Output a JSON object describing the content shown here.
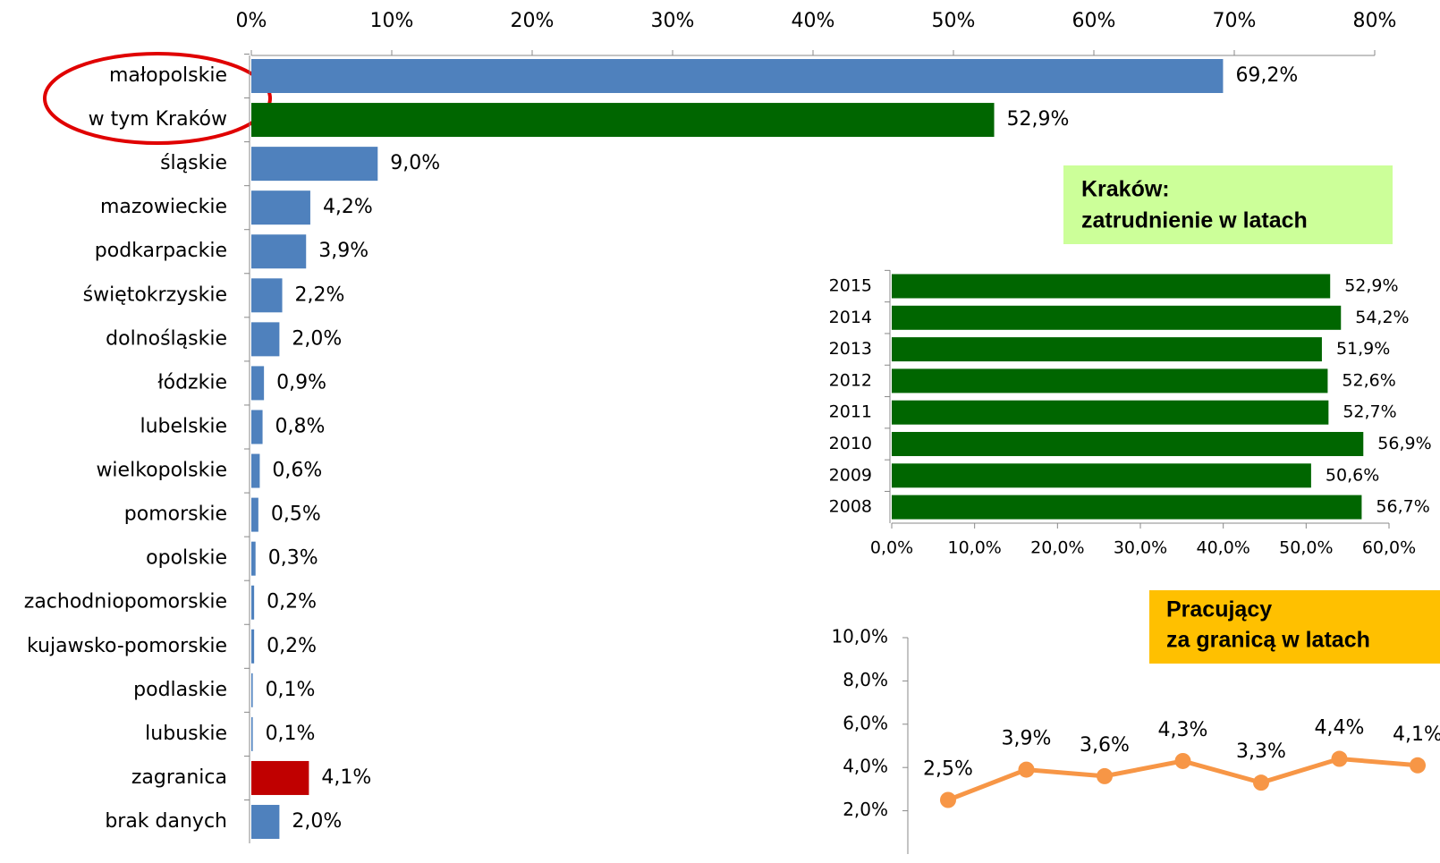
{
  "chart_data": [
    {
      "type": "bar",
      "categories": [
        "małopolskie",
        "w tym Kraków",
        "śląskie",
        "mazowieckie",
        "podkarpackie",
        "świętokrzyskie",
        "dolnośląskie",
        "łódzkie",
        "lubelskie",
        "wielkopolskie",
        "pomorskie",
        "opolskie",
        "zachodniopomorskie",
        "kujawsko-pomorskie",
        "podlaskie",
        "lubuskie",
        "zagranica",
        "brak danych"
      ],
      "values": [
        69.2,
        52.9,
        9.0,
        4.2,
        3.9,
        2.2,
        2.0,
        0.9,
        0.8,
        0.6,
        0.5,
        0.3,
        0.2,
        0.2,
        0.1,
        0.1,
        4.1,
        2.0
      ],
      "value_labels": [
        "69,2%",
        "52,9%",
        "9,0%",
        "4,2%",
        "3,9%",
        "2,2%",
        "2,0%",
        "0,9%",
        "0,8%",
        "0,6%",
        "0,5%",
        "0,3%",
        "0,2%",
        "0,2%",
        "0,1%",
        "0,1%",
        "4,1%",
        "2,0%"
      ],
      "colors": [
        "#4f81bd",
        "#006600",
        "#4f81bd",
        "#4f81bd",
        "#4f81bd",
        "#4f81bd",
        "#4f81bd",
        "#4f81bd",
        "#4f81bd",
        "#4f81bd",
        "#4f81bd",
        "#4f81bd",
        "#4f81bd",
        "#4f81bd",
        "#4f81bd",
        "#4f81bd",
        "#c00000",
        "#4f81bd"
      ],
      "xlim": [
        0,
        80
      ],
      "xticks": [
        {
          "value": 0,
          "label": "0%"
        },
        {
          "value": 10,
          "label": "10%"
        },
        {
          "value": 20,
          "label": "20%"
        },
        {
          "value": 30,
          "label": "30%"
        },
        {
          "value": 40,
          "label": "40%"
        },
        {
          "value": 50,
          "label": "50%"
        },
        {
          "value": 60,
          "label": "60%"
        },
        {
          "value": 70,
          "label": "70%"
        },
        {
          "value": 80,
          "label": "80%"
        }
      ]
    },
    {
      "type": "bar",
      "title": [
        "Kraków:",
        "zatrudnienie  w latach"
      ],
      "categories": [
        "2015",
        "2014",
        "2013",
        "2012",
        "2011",
        "2010",
        "2009",
        "2008"
      ],
      "values": [
        52.9,
        54.2,
        51.9,
        52.6,
        52.7,
        56.9,
        50.6,
        56.7
      ],
      "value_labels": [
        "52,9%",
        "54,2%",
        "51,9%",
        "52,6%",
        "52,7%",
        "56,9%",
        "50,6%",
        "56,7%"
      ],
      "color": "#006600",
      "xlim": [
        0,
        60
      ],
      "xticks": [
        {
          "value": 0,
          "label": "0,0%"
        },
        {
          "value": 10,
          "label": "10,0%"
        },
        {
          "value": 20,
          "label": "20,0%"
        },
        {
          "value": 30,
          "label": "30,0%"
        },
        {
          "value": 40,
          "label": "40,0%"
        },
        {
          "value": 50,
          "label": "50,0%"
        },
        {
          "value": 60,
          "label": "60,0%"
        }
      ]
    },
    {
      "type": "line",
      "title": [
        "Pracujący",
        "za granicą  w latach"
      ],
      "categories": [
        null,
        null,
        null,
        null,
        null,
        null,
        null
      ],
      "values": [
        2.5,
        3.9,
        3.6,
        4.3,
        3.3,
        4.4,
        4.1
      ],
      "value_labels": [
        "2,5%",
        "3,9%",
        "3,6%",
        "4,3%",
        "3,3%",
        "4,4%",
        "4,1%"
      ],
      "color": "#f79646",
      "ylim": [
        0,
        10
      ],
      "yticks": [
        {
          "value": 2,
          "label": "2,0%"
        },
        {
          "value": 4,
          "label": "4,0%"
        },
        {
          "value": 6,
          "label": "6,0%"
        },
        {
          "value": 8,
          "label": "8,0%"
        },
        {
          "value": 10,
          "label": "10,0%"
        }
      ]
    }
  ]
}
